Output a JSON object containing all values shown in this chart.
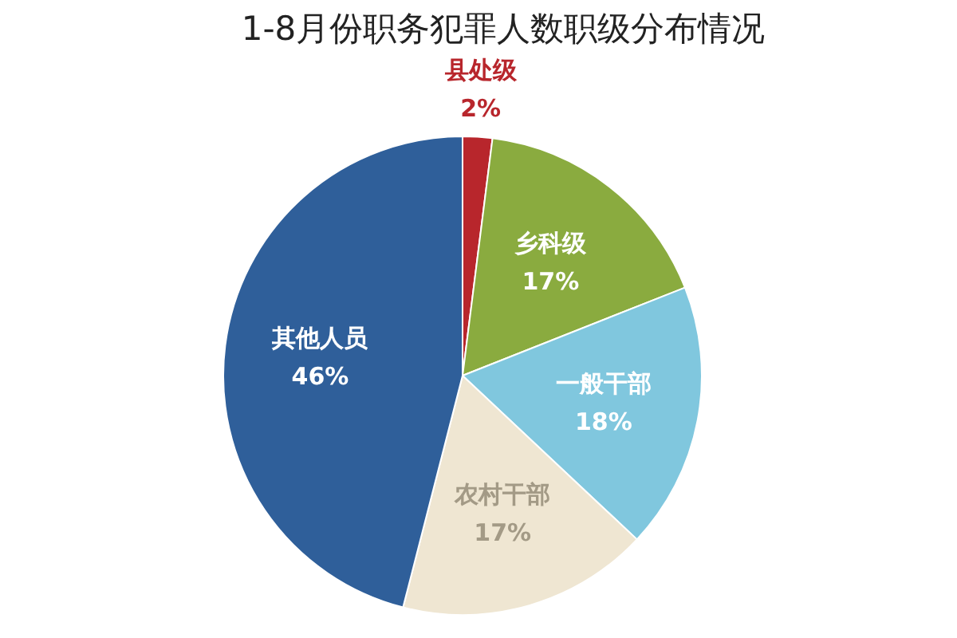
{
  "chart_data": {
    "type": "pie",
    "title": "1-8月份职务犯罪人数职级分布情况",
    "categories": [
      "县处级",
      "乡科级",
      "一般干部",
      "农村干部",
      "其他人员"
    ],
    "values": [
      2,
      17,
      18,
      17,
      46
    ],
    "value_labels": [
      "2%",
      "17%",
      "18%",
      "17%",
      "46%"
    ],
    "colors": [
      "#b8262c",
      "#8aab3f",
      "#80c7de",
      "#efe6d2",
      "#2f5f9a"
    ]
  }
}
